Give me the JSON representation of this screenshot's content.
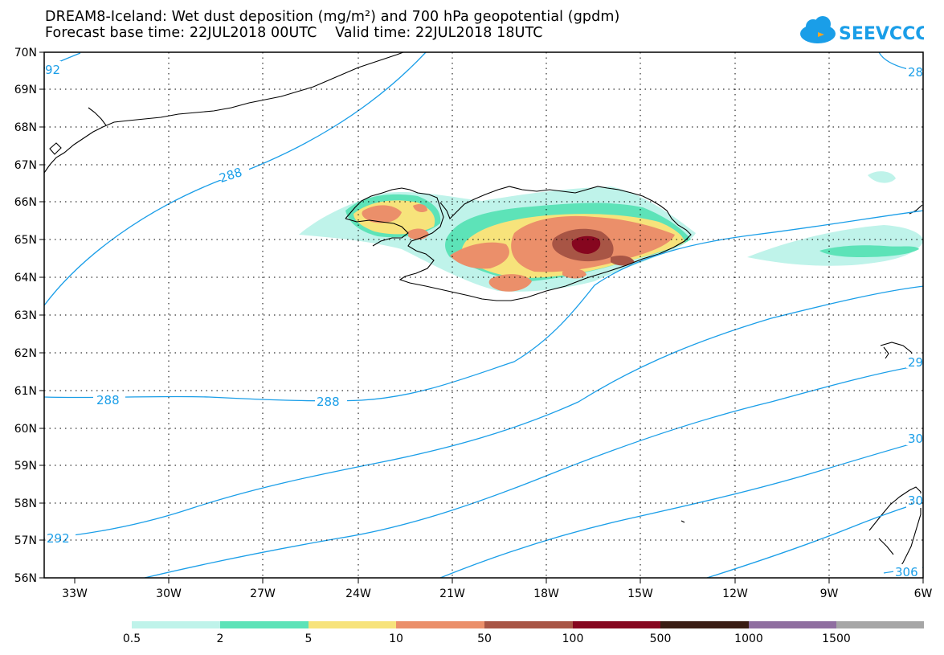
{
  "title_line1": "DREAM8-Iceland: Wet dust deposition (mg/m²) and 700 hPa geopotential (gpdm)",
  "title_line2": "Forecast base time: 22JUL2018 00UTC    Valid time: 22JUL2018 18UTC",
  "logo_text": "SEEVCCC",
  "colors": {
    "contour": "#1a9ee8",
    "logo": "#1a9ee8"
  },
  "map": {
    "lat_labels": [
      "70N",
      "69N",
      "68N",
      "67N",
      "66N",
      "65N",
      "64N",
      "63N",
      "62N",
      "61N",
      "60N",
      "59N",
      "58N",
      "57N",
      "56N"
    ],
    "lon_labels": [
      "33W",
      "30W",
      "27W",
      "24W",
      "21W",
      "18W",
      "15W",
      "12W",
      "9W",
      "6W"
    ]
  },
  "contour_labels": [
    "288",
    "288",
    "288",
    "292",
    "29",
    "28",
    "30",
    "30",
    "306",
    "92"
  ],
  "legend": {
    "colors": [
      "#bff3ea",
      "#5de3b8",
      "#f7e37b",
      "#eb8f6a",
      "#a85545",
      "#86061f",
      "#3a1d14",
      "#8f6ea0",
      "#a6a6a6"
    ],
    "labels": [
      "0.5",
      "2",
      "5",
      "10",
      "50",
      "100",
      "500",
      "1000",
      "1500"
    ]
  }
}
